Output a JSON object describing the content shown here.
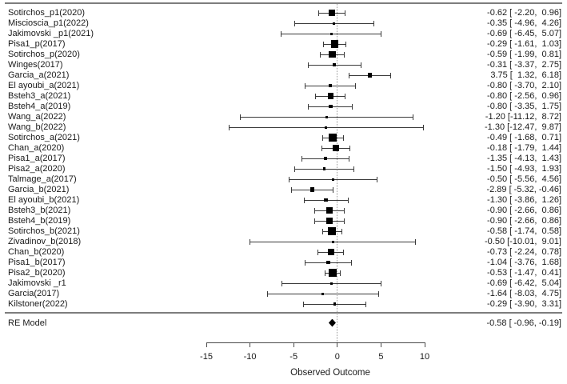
{
  "colors": {
    "background": "#ffffff",
    "text": "#1a1a1a",
    "marker": "#000000",
    "whisker": "#3a3a3a",
    "border_line": "#7d7d7d",
    "axis_line": "#4a4a4a",
    "reference_dotted": "#9a9a9a"
  },
  "chart_data": {
    "type": "forest",
    "title": "",
    "xlabel": "Observed Outcome",
    "xlim": [
      -15,
      10
    ],
    "x_ticks": [
      -15,
      -10,
      -5,
      0,
      5,
      10
    ],
    "reference_line": 0,
    "legend": "none",
    "grid": "off",
    "studies": [
      {
        "label": "Sotirchos_p1(2020)",
        "estimate": -0.62,
        "ci_low": -2.2,
        "ci_high": 0.96,
        "text": "-0.62 [ -2.20,  0.96]"
      },
      {
        "label": "Miscioscia_p1(2022)",
        "estimate": -0.35,
        "ci_low": -4.96,
        "ci_high": 4.26,
        "text": "-0.35 [ -4.96,  4.26]"
      },
      {
        "label": "Jakimovski _p1(2021)",
        "estimate": -0.69,
        "ci_low": -6.45,
        "ci_high": 5.07,
        "text": "-0.69 [ -6.45,  5.07]"
      },
      {
        "label": "Pisa1_p(2017)",
        "estimate": -0.29,
        "ci_low": -1.61,
        "ci_high": 1.03,
        "text": "-0.29 [ -1.61,  1.03]"
      },
      {
        "label": "Sotirchos_p(2020)",
        "estimate": -0.59,
        "ci_low": -1.99,
        "ci_high": 0.81,
        "text": "-0.59 [ -1.99,  0.81]"
      },
      {
        "label": "Winges(2017)",
        "estimate": -0.31,
        "ci_low": -3.37,
        "ci_high": 2.75,
        "text": "-0.31 [ -3.37,  2.75]"
      },
      {
        "label": "Garcia_a(2021)",
        "estimate": 3.75,
        "ci_low": 1.32,
        "ci_high": 6.18,
        "text": " 3.75 [  1.32,  6.18]"
      },
      {
        "label": "El ayoubi_a(2021)",
        "estimate": -0.8,
        "ci_low": -3.7,
        "ci_high": 2.1,
        "text": "-0.80 [ -3.70,  2.10]"
      },
      {
        "label": "Bsteh3_a(2021)",
        "estimate": -0.8,
        "ci_low": -2.56,
        "ci_high": 0.96,
        "text": "-0.80 [ -2.56,  0.96]"
      },
      {
        "label": "Bsteh4_a(2019)",
        "estimate": -0.8,
        "ci_low": -3.35,
        "ci_high": 1.75,
        "text": "-0.80 [ -3.35,  1.75]"
      },
      {
        "label": "Wang_a(2022)",
        "estimate": -1.2,
        "ci_low": -11.12,
        "ci_high": 8.72,
        "text": "-1.20 [-11.12,  8.72]"
      },
      {
        "label": "Wang_b(2022)",
        "estimate": -1.3,
        "ci_low": -12.47,
        "ci_high": 9.87,
        "text": "-1.30 [-12.47,  9.87]"
      },
      {
        "label": "Sotirchos_a(2021)",
        "estimate": -0.49,
        "ci_low": -1.68,
        "ci_high": 0.71,
        "text": "-0.49 [ -1.68,  0.71]"
      },
      {
        "label": "Chan_a(2020)",
        "estimate": -0.18,
        "ci_low": -1.79,
        "ci_high": 1.44,
        "text": "-0.18 [ -1.79,  1.44]"
      },
      {
        "label": "Pisa1_a(2017)",
        "estimate": -1.35,
        "ci_low": -4.13,
        "ci_high": 1.43,
        "text": "-1.35 [ -4.13,  1.43]"
      },
      {
        "label": "Pisa2_a(2020)",
        "estimate": -1.5,
        "ci_low": -4.93,
        "ci_high": 1.93,
        "text": "-1.50 [ -4.93,  1.93]"
      },
      {
        "label": "Talmage_a(2017)",
        "estimate": -0.5,
        "ci_low": -5.56,
        "ci_high": 4.56,
        "text": "-0.50 [ -5.56,  4.56]"
      },
      {
        "label": "Garcia_b(2021)",
        "estimate": -2.89,
        "ci_low": -5.32,
        "ci_high": -0.46,
        "text": "-2.89 [ -5.32, -0.46]"
      },
      {
        "label": "El ayoubi_b(2021)",
        "estimate": -1.3,
        "ci_low": -3.86,
        "ci_high": 1.26,
        "text": "-1.30 [ -3.86,  1.26]"
      },
      {
        "label": "Bsteh3_b(2021)",
        "estimate": -0.9,
        "ci_low": -2.66,
        "ci_high": 0.86,
        "text": "-0.90 [ -2.66,  0.86]"
      },
      {
        "label": "Bsteh4_b(2019)",
        "estimate": -0.9,
        "ci_low": -2.66,
        "ci_high": 0.86,
        "text": "-0.90 [ -2.66,  0.86]"
      },
      {
        "label": "Sotirchos_b(2021)",
        "estimate": -0.58,
        "ci_low": -1.74,
        "ci_high": 0.58,
        "text": "-0.58 [ -1.74,  0.58]"
      },
      {
        "label": "Zivadinov_b(2018)",
        "estimate": -0.5,
        "ci_low": -10.01,
        "ci_high": 9.01,
        "text": "-0.50 [-10.01,  9.01]"
      },
      {
        "label": "Chan_b(2020)",
        "estimate": -0.73,
        "ci_low": -2.24,
        "ci_high": 0.78,
        "text": "-0.73 [ -2.24,  0.78]"
      },
      {
        "label": "Pisa1_b(2017)",
        "estimate": -1.04,
        "ci_low": -3.76,
        "ci_high": 1.68,
        "text": "-1.04 [ -3.76,  1.68]"
      },
      {
        "label": "Pisa2_b(2020)",
        "estimate": -0.53,
        "ci_low": -1.47,
        "ci_high": 0.41,
        "text": "-0.53 [ -1.47,  0.41]"
      },
      {
        "label": "Jakimovski _r1",
        "estimate": -0.69,
        "ci_low": -6.42,
        "ci_high": 5.04,
        "text": "-0.69 [ -6.42,  5.04]"
      },
      {
        "label": "Garcia(2017)",
        "estimate": -1.64,
        "ci_low": -8.03,
        "ci_high": 4.75,
        "text": "-1.64 [ -8.03,  4.75]"
      },
      {
        "label": "Kilstoner(2022)",
        "estimate": -0.29,
        "ci_low": -3.9,
        "ci_high": 3.31,
        "text": "-0.29 [ -3.90,  3.31]"
      }
    ],
    "summary": {
      "label": "RE Model",
      "estimate": -0.58,
      "ci_low": -0.96,
      "ci_high": -0.19,
      "text": "-0.58 [ -0.96, -0.19]"
    }
  }
}
